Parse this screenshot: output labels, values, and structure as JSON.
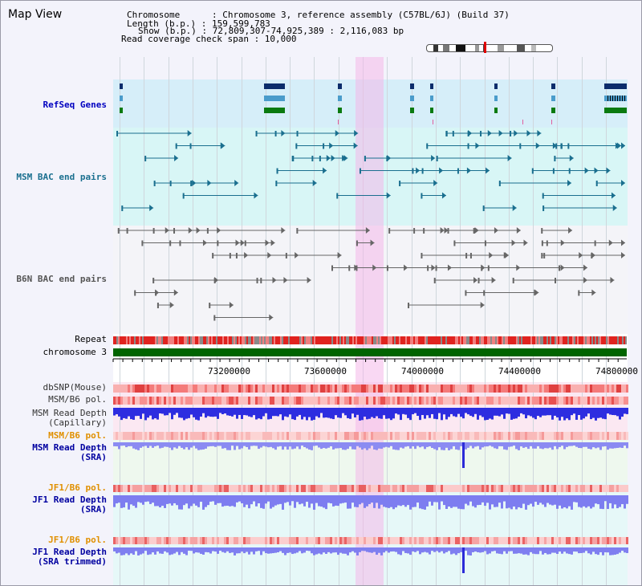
{
  "title": "Map View",
  "info": {
    "line1": "Chromosome      : Chromosome 3, reference assembly (C57BL/6J) (Build 37)",
    "line2": "Length (b.p.) : 159,599,783",
    "line3": "Show (b.p.) : 72,809,307-74,925,389 : 2,116,083 bp",
    "line4": "Read coverage check span : 10,000"
  },
  "tracks": {
    "refseq": "RefSeq Genes",
    "msm_bac": "MSM BAC end pairs",
    "b6n_bac": "B6N BAC end pairs",
    "repeat": "Repeat",
    "chrom": "chromosome 3",
    "dbsnp": "dbSNP(Mouse)",
    "msm_b6_pol": "MSM/B6 pol.",
    "msm_read_cap": "MSM Read Depth\n(Capillary)",
    "msm_b6_pol2": "MSM/B6 pol.",
    "msm_read_sra": "MSM Read Depth\n(SRA)",
    "jf1_b6_pol": "JF1/B6 pol.",
    "jf1_read_sra": "JF1 Read Depth\n(SRA)",
    "jf1_b6_pol2": "JF1/B6 pol.",
    "jf1_read_trim": "JF1 Read Depth\n(SRA trimmed)"
  },
  "axis": {
    "ticks": [
      "73200000",
      "73600000",
      "74000000",
      "74400000",
      "74800000"
    ]
  },
  "colors": {
    "refseq_label": "#0000c0",
    "msm_label": "#1a6f8f",
    "b6n_label": "#555555",
    "pol_label": "#e09000",
    "depth_label": "#0000a0",
    "highlight": "#f4b8ea",
    "chrom_bar": "#006400"
  }
}
